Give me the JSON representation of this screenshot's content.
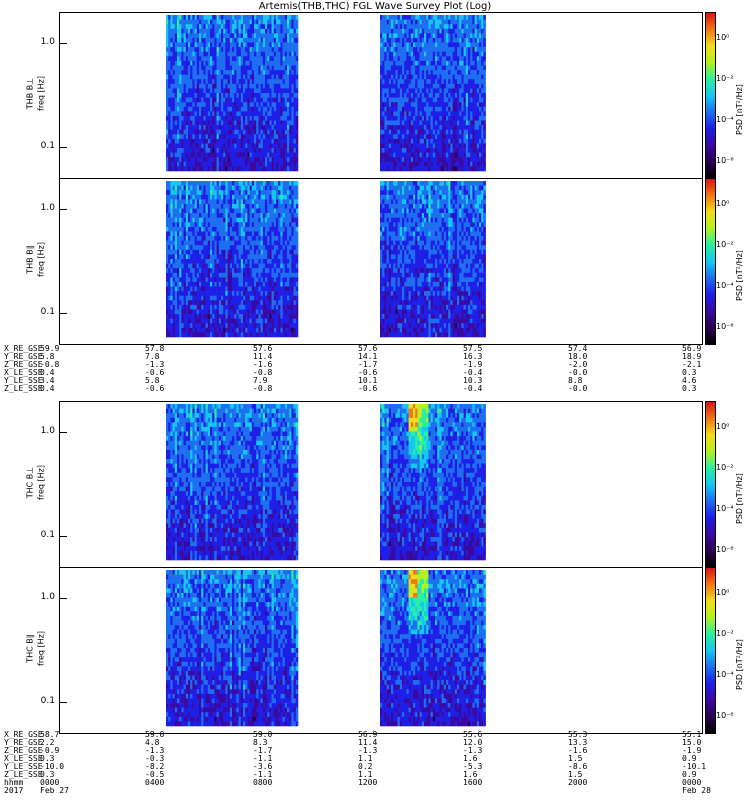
{
  "title": "Artemis(THB,THC) FGL Wave Survey Plot (Log)",
  "chart_data": {
    "type": "heatmap",
    "title": "Artemis(THB,THC) FGL Wave Survey Plot (Log)",
    "scale": "log",
    "colormap": [
      "#000000",
      "#2b0050",
      "#3a0aa0",
      "#1e1ee6",
      "#1e6ef0",
      "#14c8f0",
      "#28f0a0",
      "#b4f01e",
      "#f0dc1e",
      "#f07814",
      "#dc1414"
    ],
    "panels": [
      {
        "id": "thb-bperp",
        "group": "THB",
        "ylabel": [
          "THB B⊥",
          "freq [Hz]"
        ],
        "yticks": [
          "1.0",
          "0.1"
        ],
        "ylim": [
          0.05,
          2.0
        ],
        "cb_label": "PSD [nT²/Hz]",
        "cb_ticks": [
          "10⁰",
          "10⁻²",
          "10⁻⁴",
          "10⁻⁶"
        ],
        "data_gaps": [
          [
            0,
            4
          ],
          [
            9,
            12
          ],
          [
            16,
            24
          ]
        ],
        "events": []
      },
      {
        "id": "thb-bpar",
        "group": "THB",
        "ylabel": [
          "THB B∥",
          "freq [Hz]"
        ],
        "yticks": [
          "1.0",
          "0.1"
        ],
        "ylim": [
          0.05,
          2.0
        ],
        "cb_label": "PSD [nT²/Hz]",
        "cb_ticks": [
          "10⁰",
          "10⁻²",
          "10⁻⁴",
          "10⁻⁶"
        ],
        "data_gaps": [
          [
            0,
            4
          ],
          [
            9,
            12
          ],
          [
            16,
            24
          ]
        ],
        "events": []
      },
      {
        "id": "thc-bperp",
        "group": "THC",
        "ylabel": [
          "THC B⊥",
          "freq [Hz]"
        ],
        "yticks": [
          "1.0",
          "0.1"
        ],
        "ylim": [
          0.05,
          2.0
        ],
        "cb_label": "PSD [nT²/Hz]",
        "cb_ticks": [
          "10⁰",
          "10⁻²",
          "10⁻⁴",
          "10⁻⁶"
        ],
        "data_gaps": [
          [
            0,
            4
          ],
          [
            9,
            12
          ],
          [
            16,
            24
          ]
        ],
        "events": []
      },
      {
        "id": "thc-bpar",
        "group": "THC",
        "ylabel": [
          "THC B∥",
          "freq [Hz]"
        ],
        "yticks": [
          "1.0",
          "0.1"
        ],
        "ylim": [
          0.05,
          2.0
        ],
        "cb_label": "PSD [nT²/Hz]",
        "cb_ticks": [
          "10⁰",
          "10⁻²",
          "10⁻⁴",
          "10⁻⁶"
        ],
        "data_gaps": [
          [
            0,
            4
          ],
          [
            9,
            12
          ],
          [
            16,
            24
          ]
        ],
        "events": []
      }
    ],
    "x_range_hours": [
      0,
      24
    ],
    "ephemeris_thb": {
      "labels": [
        "X_RE_GSE",
        "Y_RE_GSE",
        "Z_RE_GSE",
        "X_LE_SSE",
        "Y_LE_SSE",
        "Z_LE_SSE"
      ],
      "columns": [
        [
          "59.9",
          "5.8",
          "-0.8",
          "0.4",
          "3.4",
          "0.4"
        ],
        [
          "57.8",
          "7.8",
          "-1.3",
          "-0.6",
          "5.8",
          "-0.6"
        ],
        [
          "57.6",
          "11.4",
          "-1.6",
          "-0.8",
          "7.9",
          "-0.8"
        ],
        [
          "57.6",
          "14.1",
          "-1.7",
          "-0.6",
          "10.1",
          "-0.6"
        ],
        [
          "57.5",
          "16.3",
          "-1.9",
          "-0.4",
          "10.3",
          "-0.4"
        ],
        [
          "57.4",
          "18.0",
          "-2.0",
          "-0.0",
          "8.8",
          "-0.0"
        ],
        [
          "56.9",
          "18.9",
          "-2.1",
          "0.3",
          "4.6",
          "0.3"
        ]
      ]
    },
    "ephemeris_thc": {
      "labels": [
        "X_RE_GSE",
        "Y_RE_GSE",
        "Z_RE_GSE",
        "X_LE_SSE",
        "Y_LE_SSE",
        "Z_LE_SSE",
        "hhmm",
        "2017"
      ],
      "columns": [
        [
          "58.7",
          "2.2",
          "-0.9",
          "0.3",
          "-10.0",
          "0.3",
          "0000",
          "Feb 27"
        ],
        [
          "59.0",
          "4.8",
          "-1.3",
          "-0.3",
          "-8.2",
          "-0.5",
          "0400",
          ""
        ],
        [
          "59.0",
          "8.3",
          "-1.7",
          "-1.1",
          "-3.6",
          "-1.1",
          "0800",
          ""
        ],
        [
          "56.9",
          "11.4",
          "-1.3",
          "1.1",
          "0.2",
          "1.1",
          "1200",
          ""
        ],
        [
          "55.6",
          "12.0",
          "-1.3",
          "1.6",
          "-5.3",
          "1.6",
          "1600",
          ""
        ],
        [
          "55.3",
          "13.3",
          "-1.6",
          "1.5",
          "-8.6",
          "1.5",
          "2000",
          ""
        ],
        [
          "55.1",
          "15.0",
          "-1.9",
          "0.9",
          "-10.1",
          "0.9",
          "0000",
          "Feb 28"
        ]
      ]
    }
  }
}
